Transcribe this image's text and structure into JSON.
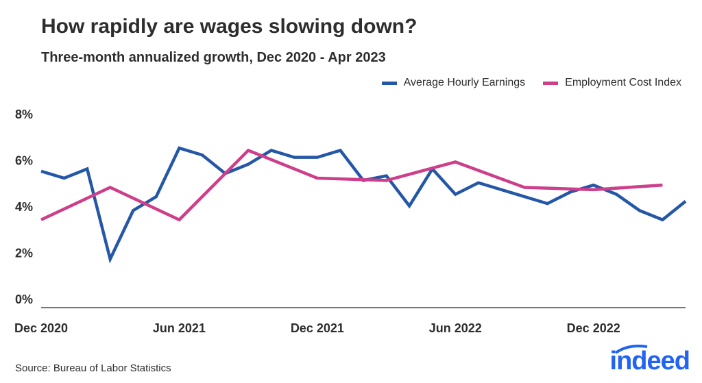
{
  "title": "How rapidly are wages slowing down?",
  "subtitle": "Three-month annualized growth, Dec 2020 - Apr 2023",
  "source": "Source: Bureau of Labor Statistics",
  "logo": "indeed",
  "chart_data": {
    "type": "line",
    "title": "How rapidly are wages slowing down?",
    "subtitle": "Three-month annualized growth, Dec 2020 - Apr 2023",
    "xlabel": "",
    "ylabel": "",
    "ylim": [
      0,
      8
    ],
    "yticks": [
      "0%",
      "2%",
      "4%",
      "6%",
      "8%"
    ],
    "xticks": [
      "Dec 2020",
      "Jun 2021",
      "Dec 2021",
      "Jun 2022",
      "Dec 2022"
    ],
    "grid": false,
    "legend_position": "top-right",
    "x": [
      "2020-12",
      "2021-01",
      "2021-02",
      "2021-03",
      "2021-04",
      "2021-05",
      "2021-06",
      "2021-07",
      "2021-08",
      "2021-09",
      "2021-10",
      "2021-11",
      "2021-12",
      "2022-01",
      "2022-02",
      "2022-03",
      "2022-04",
      "2022-05",
      "2022-06",
      "2022-07",
      "2022-08",
      "2022-09",
      "2022-10",
      "2022-11",
      "2022-12",
      "2023-01",
      "2023-02",
      "2023-03",
      "2023-04"
    ],
    "series": [
      {
        "name": "Average Hourly Earnings",
        "color": "#2557a7",
        "x": [
          "2020-12",
          "2021-01",
          "2021-02",
          "2021-03",
          "2021-04",
          "2021-05",
          "2021-06",
          "2021-07",
          "2021-08",
          "2021-09",
          "2021-10",
          "2021-11",
          "2021-12",
          "2022-01",
          "2022-02",
          "2022-03",
          "2022-04",
          "2022-05",
          "2022-06",
          "2022-07",
          "2022-08",
          "2022-09",
          "2022-10",
          "2022-11",
          "2022-12",
          "2023-01",
          "2023-02",
          "2023-03",
          "2023-04"
        ],
        "values": [
          5.9,
          5.6,
          6.0,
          2.1,
          4.2,
          4.8,
          6.9,
          6.6,
          5.8,
          6.2,
          6.8,
          6.5,
          6.5,
          6.8,
          5.5,
          5.7,
          4.4,
          6.0,
          4.9,
          5.4,
          5.1,
          4.8,
          4.5,
          5.0,
          5.3,
          4.9,
          4.2,
          3.8,
          4.6
        ]
      },
      {
        "name": "Employment Cost Index",
        "color": "#cd3f8a",
        "x": [
          "2020-12",
          "2021-03",
          "2021-06",
          "2021-09",
          "2021-12",
          "2022-03",
          "2022-06",
          "2022-09",
          "2022-12",
          "2023-03"
        ],
        "values": [
          3.8,
          5.2,
          3.8,
          6.8,
          5.6,
          5.5,
          6.3,
          5.2,
          5.1,
          5.3
        ]
      }
    ]
  }
}
